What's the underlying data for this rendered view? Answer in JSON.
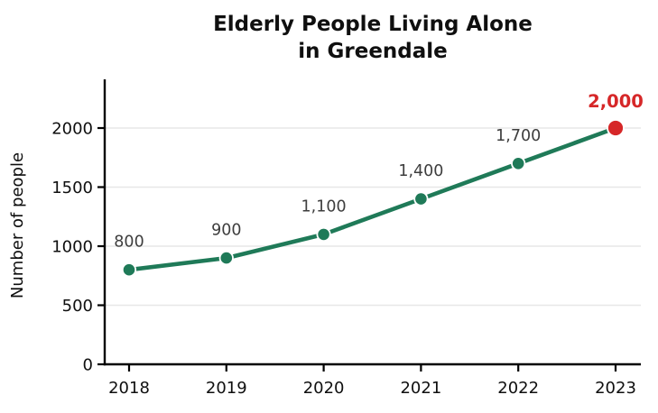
{
  "chart_data": {
    "type": "line",
    "title": "Elderly People Living Alone in Greendale",
    "title_lines": [
      "Elderly People Living Alone",
      "in Greendale"
    ],
    "ylabel": "Number of people",
    "xlabel": "",
    "categories": [
      "2018",
      "2019",
      "2020",
      "2021",
      "2022",
      "2023"
    ],
    "values": [
      800,
      900,
      1100,
      1400,
      1700,
      2000
    ],
    "point_labels": [
      "800",
      "900",
      "1,100",
      "1,400",
      "1,700",
      "2,000"
    ],
    "highlight_index": 5,
    "y_ticks": [
      0,
      500,
      1000,
      1500,
      2000
    ],
    "y_tick_labels": [
      "0",
      "500",
      "1000",
      "1500",
      "2000"
    ],
    "ylim": [
      0,
      2420
    ],
    "grid": "horizontal",
    "legend": "none",
    "series_color": "#1f7a58",
    "highlight_color": "#d62728",
    "label_color": "#3d3d3d",
    "axis_color": "#000000",
    "grid_color": "#e7e7e7",
    "marker_edge_color": "#ffffff",
    "background_color": "#ffffff"
  }
}
